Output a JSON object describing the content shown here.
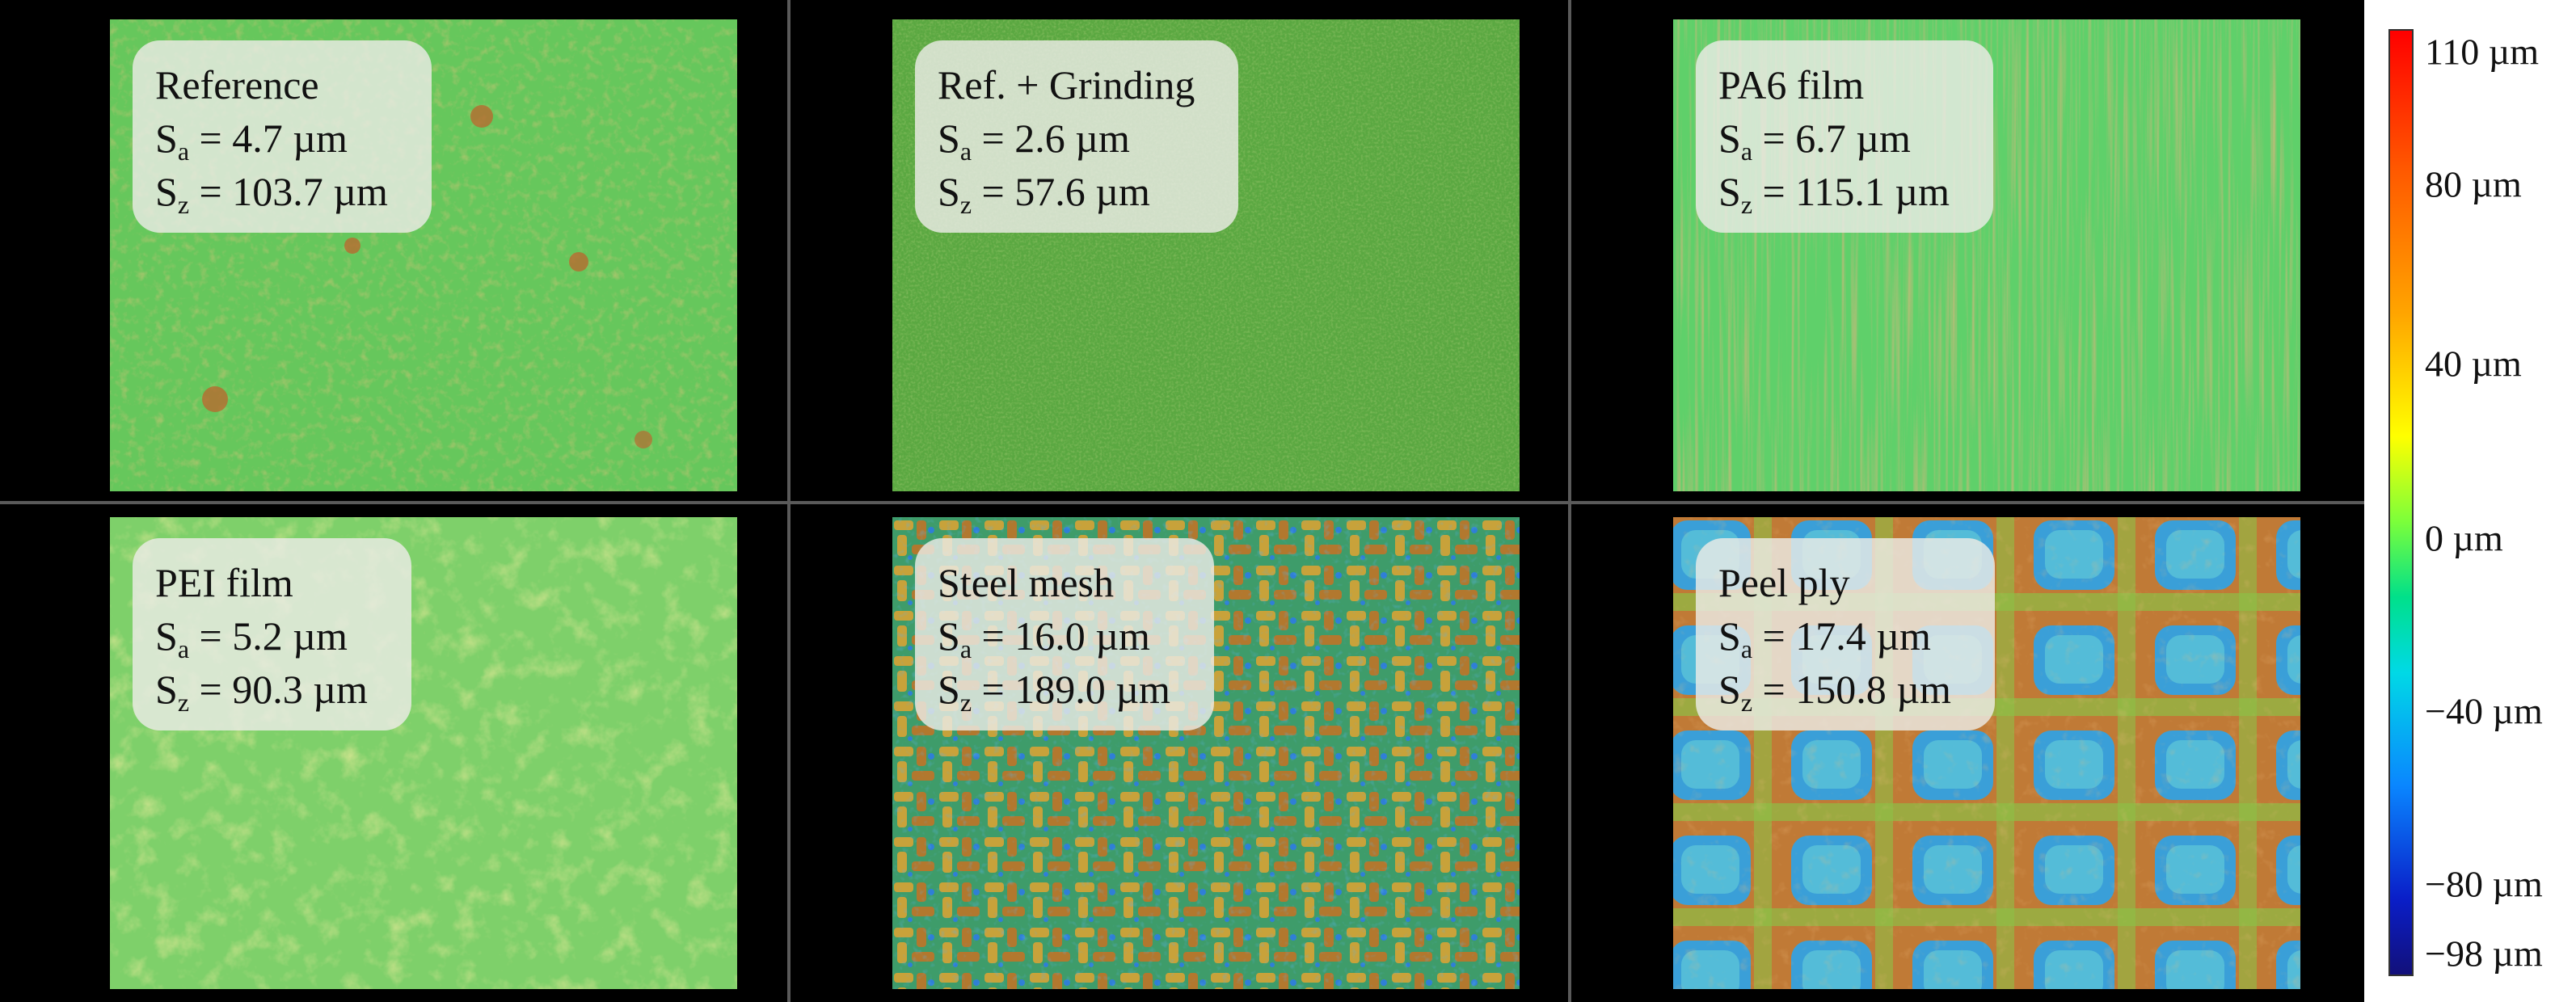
{
  "panels": [
    {
      "name": "Reference",
      "sa": "S",
      "sa_sub": "a",
      "sa_val": " = 4.7 µm",
      "sz": "S",
      "sz_sub": "z",
      "sz_val": " = 103.7 µm"
    },
    {
      "name": "Ref. + Grinding",
      "sa": "S",
      "sa_sub": "a",
      "sa_val": " = 2.6 µm",
      "sz": "S",
      "sz_sub": "z",
      "sz_val": " = 57.6 µm"
    },
    {
      "name": "PA6 film",
      "sa": "S",
      "sa_sub": "a",
      "sa_val": " = 6.7 µm",
      "sz": "S",
      "sz_sub": "z",
      "sz_val": " = 115.1 µm"
    },
    {
      "name": "PEI film",
      "sa": "S",
      "sa_sub": "a",
      "sa_val": " = 5.2 µm",
      "sz": "S",
      "sz_sub": "z",
      "sz_val": " = 90.3 µm"
    },
    {
      "name": "Steel mesh",
      "sa": "S",
      "sa_sub": "a",
      "sa_val": " = 16.0 µm",
      "sz": "S",
      "sz_sub": "z",
      "sz_val": " = 189.0 µm"
    },
    {
      "name": "Peel ply",
      "sa": "S",
      "sa_sub": "a",
      "sa_val": " = 17.4 µm",
      "sz": "S",
      "sz_sub": "z",
      "sz_val": " = 150.8 µm"
    }
  ],
  "color_scale": {
    "ticks": [
      "110 µm",
      "80 µm",
      "40 µm",
      "0 µm",
      "−40 µm",
      "−80 µm",
      "−98 µm"
    ],
    "max": 110,
    "min": -98,
    "colors": [
      "#ff0000",
      "#ffa500",
      "#ffff00",
      "#00e08a",
      "#00d9e6",
      "#0a86ff",
      "#12107a"
    ]
  }
}
